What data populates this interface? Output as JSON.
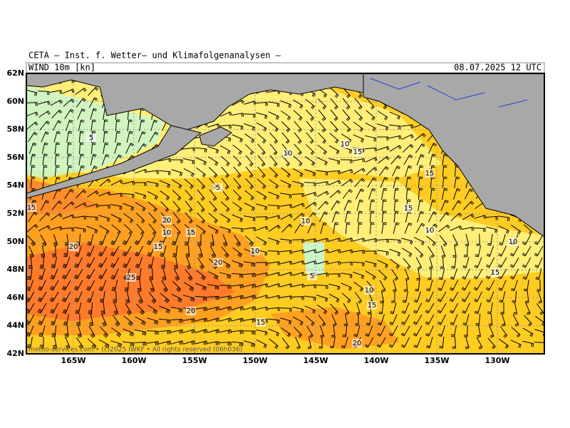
{
  "header": {
    "title": "CETA – Inst. f. Wetter– und Klimafolgenanalysen –",
    "field": "WIND 10m [kn]",
    "valid": "08.07.2025 12 UTC"
  },
  "lat_ticks": [
    {
      "value": 62,
      "label": "62N"
    },
    {
      "value": 60,
      "label": "60N"
    },
    {
      "value": 58,
      "label": "58N"
    },
    {
      "value": 56,
      "label": "56N"
    },
    {
      "value": 54,
      "label": "54N"
    },
    {
      "value": 52,
      "label": "52N"
    },
    {
      "value": 50,
      "label": "50N"
    },
    {
      "value": 48,
      "label": "48N"
    },
    {
      "value": 46,
      "label": "46N"
    },
    {
      "value": 44,
      "label": "44N"
    },
    {
      "value": 42,
      "label": "42N"
    }
  ],
  "lon_ticks": [
    {
      "value": 165,
      "label": "165W"
    },
    {
      "value": 160,
      "label": "160W"
    },
    {
      "value": 155,
      "label": "155W"
    },
    {
      "value": 150,
      "label": "150W"
    },
    {
      "value": 145,
      "label": "145W"
    },
    {
      "value": 140,
      "label": "140W"
    },
    {
      "value": 135,
      "label": "135W"
    },
    {
      "value": 130,
      "label": "130W"
    }
  ],
  "contour_labels": [
    5,
    10,
    10,
    15,
    15,
    5,
    15,
    15,
    20,
    10,
    15,
    10,
    10,
    20,
    15,
    10,
    10,
    20,
    5,
    15,
    25,
    10,
    15,
    20,
    15,
    20
  ],
  "copyright": "meteo-services.com • (c)2025 IWKF • All rights reserved (06h036)"
}
